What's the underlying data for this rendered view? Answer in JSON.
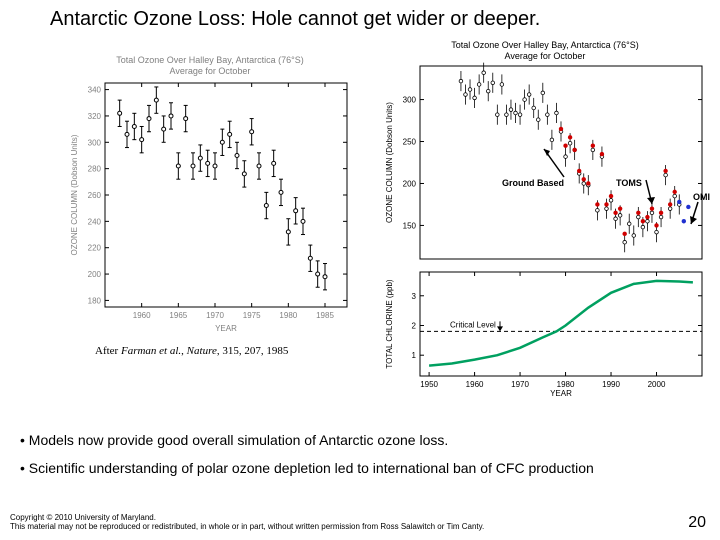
{
  "title": "Antarctic Ozone Loss: Hole cannot get wider or deeper.",
  "chart_left": {
    "title_line1": "Total Ozone Over Halley Bay, Antarctica (76°S)",
    "title_line2": "Average for October",
    "x_label": "YEAR",
    "y_label": "OZONE COLUMN (Dobson Units)",
    "x_min": 1955,
    "x_max": 1988,
    "y_min": 175,
    "y_max": 345,
    "x_ticks": [
      1960,
      1965,
      1970,
      1975,
      1980,
      1985
    ],
    "y_ticks": [
      180,
      200,
      220,
      240,
      260,
      280,
      300,
      320,
      340
    ],
    "point_color": "#000000",
    "errorbar_color": "#000000",
    "background": "#ffffff",
    "axis_color": "#000000",
    "title_color": "#808080",
    "data": [
      {
        "x": 1957,
        "y": 322,
        "err": 10
      },
      {
        "x": 1958,
        "y": 306,
        "err": 10
      },
      {
        "x": 1959,
        "y": 312,
        "err": 10
      },
      {
        "x": 1960,
        "y": 302,
        "err": 10
      },
      {
        "x": 1961,
        "y": 318,
        "err": 10
      },
      {
        "x": 1962,
        "y": 332,
        "err": 10
      },
      {
        "x": 1963,
        "y": 310,
        "err": 10
      },
      {
        "x": 1964,
        "y": 320,
        "err": 10
      },
      {
        "x": 1965,
        "y": 282,
        "err": 10
      },
      {
        "x": 1966,
        "y": 318,
        "err": 10
      },
      {
        "x": 1967,
        "y": 282,
        "err": 10
      },
      {
        "x": 1968,
        "y": 288,
        "err": 10
      },
      {
        "x": 1969,
        "y": 284,
        "err": 10
      },
      {
        "x": 1970,
        "y": 282,
        "err": 10
      },
      {
        "x": 1971,
        "y": 300,
        "err": 10
      },
      {
        "x": 1972,
        "y": 306,
        "err": 10
      },
      {
        "x": 1973,
        "y": 290,
        "err": 10
      },
      {
        "x": 1974,
        "y": 276,
        "err": 10
      },
      {
        "x": 1975,
        "y": 308,
        "err": 10
      },
      {
        "x": 1976,
        "y": 282,
        "err": 10
      },
      {
        "x": 1977,
        "y": 252,
        "err": 10
      },
      {
        "x": 1978,
        "y": 284,
        "err": 10
      },
      {
        "x": 1979,
        "y": 262,
        "err": 10
      },
      {
        "x": 1980,
        "y": 232,
        "err": 10
      },
      {
        "x": 1981,
        "y": 248,
        "err": 10
      },
      {
        "x": 1982,
        "y": 240,
        "err": 10
      },
      {
        "x": 1983,
        "y": 212,
        "err": 10
      },
      {
        "x": 1984,
        "y": 200,
        "err": 10
      },
      {
        "x": 1985,
        "y": 198,
        "err": 10
      }
    ]
  },
  "chart_right_top": {
    "title_line1": "Total Ozone Over Halley Bay, Antarctica (76°S)",
    "title_line2": "Average for October",
    "x_label": "",
    "y_label": "OZONE COLUMN (Dobson Units)",
    "x_min": 1948,
    "x_max": 2010,
    "y_min": 110,
    "y_max": 340,
    "y_ticks": [
      150,
      200,
      250,
      300
    ],
    "legend": {
      "ground": {
        "label": "Ground Based",
        "color": "#000000"
      },
      "toms": {
        "label": "TOMS",
        "color": "#d00000"
      },
      "omi": {
        "label": "OMI",
        "color": "#2030d0"
      }
    },
    "background": "#ffffff",
    "axis_color": "#000000",
    "ground_data": [
      {
        "x": 1957,
        "y": 322,
        "err": 12
      },
      {
        "x": 1958,
        "y": 306,
        "err": 12
      },
      {
        "x": 1959,
        "y": 312,
        "err": 12
      },
      {
        "x": 1960,
        "y": 302,
        "err": 12
      },
      {
        "x": 1961,
        "y": 318,
        "err": 12
      },
      {
        "x": 1962,
        "y": 332,
        "err": 12
      },
      {
        "x": 1963,
        "y": 310,
        "err": 12
      },
      {
        "x": 1964,
        "y": 320,
        "err": 12
      },
      {
        "x": 1965,
        "y": 282,
        "err": 12
      },
      {
        "x": 1966,
        "y": 318,
        "err": 12
      },
      {
        "x": 1967,
        "y": 282,
        "err": 12
      },
      {
        "x": 1968,
        "y": 288,
        "err": 12
      },
      {
        "x": 1969,
        "y": 284,
        "err": 12
      },
      {
        "x": 1970,
        "y": 282,
        "err": 12
      },
      {
        "x": 1971,
        "y": 300,
        "err": 12
      },
      {
        "x": 1972,
        "y": 306,
        "err": 12
      },
      {
        "x": 1973,
        "y": 290,
        "err": 12
      },
      {
        "x": 1974,
        "y": 276,
        "err": 12
      },
      {
        "x": 1975,
        "y": 308,
        "err": 12
      },
      {
        "x": 1976,
        "y": 282,
        "err": 12
      },
      {
        "x": 1977,
        "y": 252,
        "err": 12
      },
      {
        "x": 1978,
        "y": 284,
        "err": 12
      },
      {
        "x": 1979,
        "y": 262,
        "err": 12
      },
      {
        "x": 1980,
        "y": 232,
        "err": 12
      },
      {
        "x": 1981,
        "y": 248,
        "err": 12
      },
      {
        "x": 1982,
        "y": 240,
        "err": 12
      },
      {
        "x": 1983,
        "y": 212,
        "err": 12
      },
      {
        "x": 1984,
        "y": 200,
        "err": 12
      },
      {
        "x": 1985,
        "y": 198,
        "err": 12
      },
      {
        "x": 1986,
        "y": 240,
        "err": 12
      },
      {
        "x": 1987,
        "y": 168,
        "err": 12
      },
      {
        "x": 1988,
        "y": 232,
        "err": 12
      },
      {
        "x": 1989,
        "y": 170,
        "err": 12
      },
      {
        "x": 1990,
        "y": 180,
        "err": 12
      },
      {
        "x": 1991,
        "y": 158,
        "err": 12
      },
      {
        "x": 1992,
        "y": 162,
        "err": 12
      },
      {
        "x": 1993,
        "y": 130,
        "err": 12
      },
      {
        "x": 1994,
        "y": 152,
        "err": 12
      },
      {
        "x": 1995,
        "y": 138,
        "err": 12
      },
      {
        "x": 1996,
        "y": 160,
        "err": 12
      },
      {
        "x": 1997,
        "y": 148,
        "err": 12
      },
      {
        "x": 1998,
        "y": 155,
        "err": 12
      },
      {
        "x": 1999,
        "y": 165,
        "err": 12
      },
      {
        "x": 2000,
        "y": 142,
        "err": 12
      },
      {
        "x": 2001,
        "y": 160,
        "err": 12
      },
      {
        "x": 2002,
        "y": 210,
        "err": 12
      },
      {
        "x": 2003,
        "y": 170,
        "err": 12
      },
      {
        "x": 2004,
        "y": 185,
        "err": 12
      },
      {
        "x": 2005,
        "y": 175,
        "err": 12
      }
    ],
    "toms_data": [
      {
        "x": 1979,
        "y": 265
      },
      {
        "x": 1980,
        "y": 245
      },
      {
        "x": 1981,
        "y": 255
      },
      {
        "x": 1982,
        "y": 240
      },
      {
        "x": 1983,
        "y": 215
      },
      {
        "x": 1984,
        "y": 205
      },
      {
        "x": 1985,
        "y": 200
      },
      {
        "x": 1986,
        "y": 245
      },
      {
        "x": 1987,
        "y": 175
      },
      {
        "x": 1988,
        "y": 235
      },
      {
        "x": 1989,
        "y": 175
      },
      {
        "x": 1990,
        "y": 185
      },
      {
        "x": 1991,
        "y": 165
      },
      {
        "x": 1992,
        "y": 170
      },
      {
        "x": 1993,
        "y": 140
      },
      {
        "x": 1996,
        "y": 165
      },
      {
        "x": 1997,
        "y": 155
      },
      {
        "x": 1998,
        "y": 160
      },
      {
        "x": 1999,
        "y": 170
      },
      {
        "x": 2000,
        "y": 150
      },
      {
        "x": 2001,
        "y": 165
      },
      {
        "x": 2002,
        "y": 215
      },
      {
        "x": 2003,
        "y": 175
      },
      {
        "x": 2004,
        "y": 190
      }
    ],
    "omi_data": [
      {
        "x": 2005,
        "y": 178
      },
      {
        "x": 2006,
        "y": 155
      },
      {
        "x": 2007,
        "y": 172
      }
    ]
  },
  "chart_right_bottom": {
    "x_label": "YEAR",
    "y_label": "TOTAL CHLORINE (ppb)",
    "x_min": 1948,
    "x_max": 2010,
    "y_min": 0.3,
    "y_max": 3.8,
    "x_ticks": [
      1950,
      1960,
      1970,
      1980,
      1990,
      2000
    ],
    "y_ticks": [
      1,
      2,
      3
    ],
    "critical_label": "Critical Level",
    "critical_value": 1.8,
    "critical_color": "#000000",
    "line_color": "#00a060",
    "line_width": 2.5,
    "background": "#ffffff",
    "axis_color": "#000000",
    "line_data": [
      {
        "x": 1950,
        "y": 0.65
      },
      {
        "x": 1955,
        "y": 0.72
      },
      {
        "x": 1960,
        "y": 0.85
      },
      {
        "x": 1965,
        "y": 1.0
      },
      {
        "x": 1970,
        "y": 1.25
      },
      {
        "x": 1975,
        "y": 1.6
      },
      {
        "x": 1978,
        "y": 1.8
      },
      {
        "x": 1980,
        "y": 2.0
      },
      {
        "x": 1985,
        "y": 2.6
      },
      {
        "x": 1990,
        "y": 3.1
      },
      {
        "x": 1995,
        "y": 3.4
      },
      {
        "x": 2000,
        "y": 3.5
      },
      {
        "x": 2005,
        "y": 3.48
      },
      {
        "x": 2008,
        "y": 3.45
      }
    ]
  },
  "citation": {
    "prefix": "After ",
    "authors": "Farman et al.",
    "rest": ", Nature, 315, 207, 1985"
  },
  "bullets": [
    "Models now provide good overall simulation of   Antarctic ozone loss.",
    "Scientific understanding of polar ozone depletion led to international ban of CFC production"
  ],
  "copyright": {
    "line1": "Copyright © 2010 University of Maryland.",
    "line2": "This material may not be reproduced or redistributed, in whole or in part, without written permission from Ross Salawitch or Tim Canty."
  },
  "page_number": "20"
}
